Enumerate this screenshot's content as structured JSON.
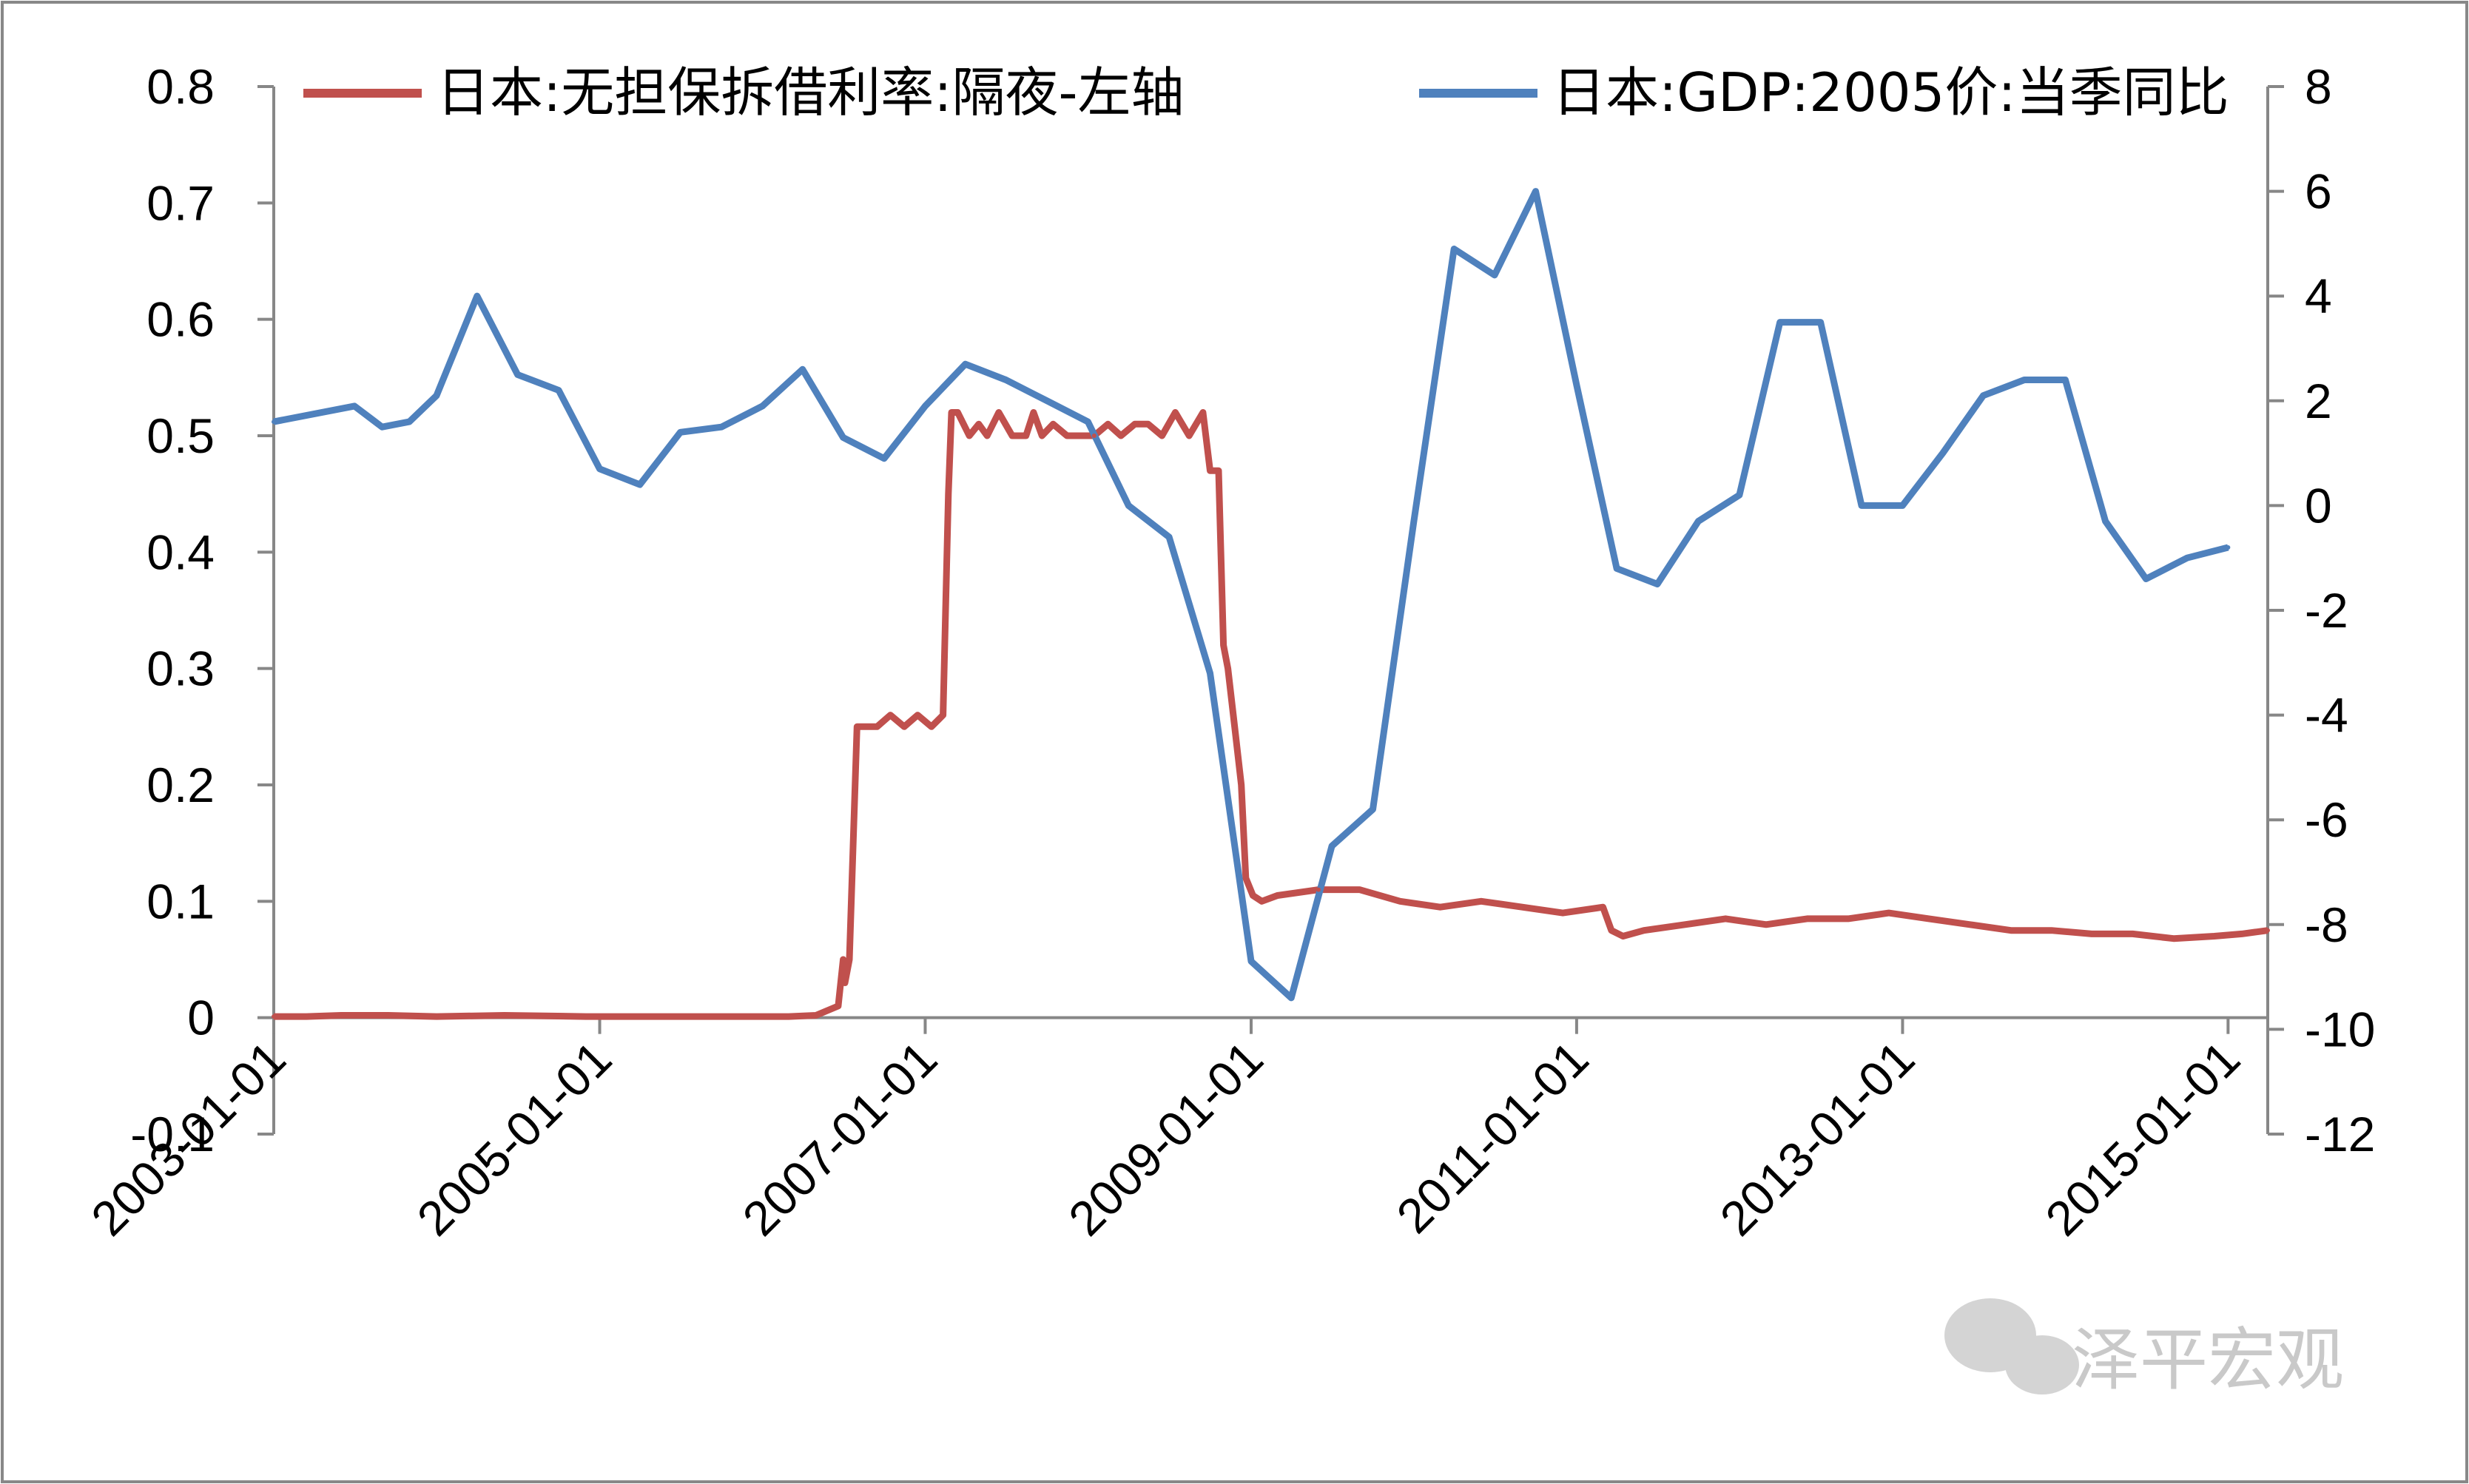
{
  "chart_data": {
    "type": "line",
    "title": "",
    "watermark": "泽平宏观",
    "colors": {
      "overnight_rate": "#C0504D",
      "gdp_yoy": "#4F81BD",
      "axis": "#878787",
      "frame": "#888888"
    },
    "x_axis": {
      "type": "date",
      "range": [
        "2003-01-01",
        "2015-03-31"
      ],
      "tick_labels": [
        "2003-01-01",
        "2005-01-01",
        "2007-01-01",
        "2009-01-01",
        "2011-01-01",
        "2013-01-01",
        "2015-01-01"
      ],
      "tick_values": [
        "2003-01-01",
        "2005-01-01",
        "2007-01-01",
        "2009-01-01",
        "2011-01-01",
        "2013-01-01",
        "2015-01-01"
      ]
    },
    "y_axis_left": {
      "ylim": [
        -0.1,
        0.8
      ],
      "tick_labels": [
        "0.8",
        "0.7",
        "0.6",
        "0.5",
        "0.4",
        "0.3",
        "0.2",
        "0.1",
        "0",
        "-0.1"
      ],
      "tick_values": [
        0.8,
        0.7,
        0.6,
        0.5,
        0.4,
        0.3,
        0.2,
        0.1,
        0,
        -0.1
      ]
    },
    "y_axis_right": {
      "ylim": [
        -12,
        8
      ],
      "tick_labels": [
        "8",
        "6",
        "4",
        "2",
        "0",
        "-2",
        "-4",
        "-6",
        "-8",
        "-10",
        "-12"
      ],
      "tick_values": [
        8,
        6,
        4,
        2,
        0,
        -2,
        -4,
        -6,
        -8,
        -10,
        -12
      ]
    },
    "legend": {
      "placement": "top",
      "items": [
        {
          "name": "日本:无担保拆借利率:隔夜-左轴",
          "axis": "left"
        },
        {
          "name": "日本:GDP:2005价:当季同比",
          "axis": "right"
        }
      ]
    },
    "series": [
      {
        "name": "日本:无担保拆借利率:隔夜-左轴",
        "axis": "left",
        "x": [
          "2003-01-01",
          "2003-03-15",
          "2003-06-01",
          "2003-09-15",
          "2004-01-01",
          "2004-06-01",
          "2004-12-01",
          "2005-06-01",
          "2005-12-01",
          "2006-03-01",
          "2006-05-01",
          "2006-06-20",
          "2006-07-01",
          "2006-07-05",
          "2006-07-15",
          "2006-08-01",
          "2006-09-15",
          "2006-10-15",
          "2006-11-15",
          "2006-12-15",
          "2007-01-15",
          "2007-02-10",
          "2007-02-22",
          "2007-03-01",
          "2007-03-15",
          "2007-04-10",
          "2007-05-01",
          "2007-05-20",
          "2007-06-15",
          "2007-07-15",
          "2007-08-15",
          "2007-09-01",
          "2007-09-20",
          "2007-10-15",
          "2007-11-15",
          "2007-12-15",
          "2008-01-15",
          "2008-02-15",
          "2008-03-15",
          "2008-04-15",
          "2008-05-15",
          "2008-06-15",
          "2008-07-15",
          "2008-08-15",
          "2008-09-15",
          "2008-10-01",
          "2008-10-20",
          "2008-10-31",
          "2008-11-10",
          "2008-11-25",
          "2008-12-10",
          "2008-12-20",
          "2009-01-05",
          "2009-01-25",
          "2009-03-01",
          "2009-06-01",
          "2009-09-01",
          "2009-12-01",
          "2010-03-01",
          "2010-06-01",
          "2010-09-01",
          "2010-12-01",
          "2011-03-01",
          "2011-03-20",
          "2011-04-15",
          "2011-06-01",
          "2011-09-01",
          "2011-12-01",
          "2012-03-01",
          "2012-06-01",
          "2012-09-01",
          "2012-12-01",
          "2013-03-01",
          "2013-06-01",
          "2013-09-01",
          "2013-12-01",
          "2014-03-01",
          "2014-06-01",
          "2014-09-01",
          "2014-12-01",
          "2015-02-01",
          "2015-03-31"
        ],
        "values": [
          0.001,
          0.001,
          0.002,
          0.002,
          0.001,
          0.002,
          0.001,
          0.001,
          0.001,
          0.001,
          0.002,
          0.01,
          0.05,
          0.03,
          0.05,
          0.25,
          0.25,
          0.26,
          0.25,
          0.26,
          0.25,
          0.26,
          0.45,
          0.52,
          0.52,
          0.5,
          0.51,
          0.5,
          0.52,
          0.5,
          0.5,
          0.52,
          0.5,
          0.51,
          0.5,
          0.5,
          0.5,
          0.51,
          0.5,
          0.51,
          0.51,
          0.5,
          0.52,
          0.5,
          0.52,
          0.47,
          0.47,
          0.32,
          0.3,
          0.25,
          0.2,
          0.12,
          0.105,
          0.1,
          0.105,
          0.11,
          0.11,
          0.1,
          0.095,
          0.1,
          0.095,
          0.09,
          0.095,
          0.075,
          0.07,
          0.075,
          0.08,
          0.085,
          0.08,
          0.085,
          0.085,
          0.09,
          0.085,
          0.08,
          0.075,
          0.075,
          0.072,
          0.072,
          0.068,
          0.07,
          0.072,
          0.075
        ]
      },
      {
        "name": "日本:GDP:2005价:当季同比",
        "axis": "right",
        "x": [
          "2003-01-01",
          "2003-07-01",
          "2003-09-01",
          "2003-11-01",
          "2004-01-01",
          "2004-04-01",
          "2004-07-01",
          "2004-10-01",
          "2005-01-01",
          "2005-04-01",
          "2005-07-01",
          "2005-10-01",
          "2006-01-01",
          "2006-04-01",
          "2006-07-01",
          "2006-10-01",
          "2007-01-01",
          "2007-04-01",
          "2007-07-01",
          "2007-10-01",
          "2008-01-01",
          "2008-04-01",
          "2008-07-01",
          "2008-10-01",
          "2009-01-01",
          "2009-04-01",
          "2009-07-01",
          "2009-10-01",
          "2010-01-01",
          "2010-04-01",
          "2010-07-01",
          "2010-10-01",
          "2011-01-01",
          "2011-04-01",
          "2011-07-01",
          "2011-10-01",
          "2012-01-01",
          "2012-04-01",
          "2012-07-01",
          "2012-10-01",
          "2013-01-01",
          "2013-04-01",
          "2013-07-01",
          "2013-10-01",
          "2014-01-01",
          "2014-04-01",
          "2014-07-01",
          "2014-10-01",
          "2015-01-01"
        ],
        "values": [
          1.6,
          1.9,
          1.5,
          1.6,
          2.1,
          4.0,
          2.5,
          2.2,
          0.7,
          0.4,
          1.4,
          1.5,
          1.9,
          2.6,
          1.3,
          0.9,
          1.9,
          2.7,
          2.4,
          2.0,
          1.6,
          0.0,
          -0.6,
          -3.2,
          -8.7,
          -9.4,
          -6.5,
          -5.8,
          -0.3,
          4.9,
          4.4,
          6.0,
          2.3,
          -1.2,
          -1.5,
          -0.3,
          0.2,
          3.5,
          3.5,
          0.0,
          0.0,
          1.0,
          2.1,
          2.4,
          2.4,
          -0.3,
          -1.4,
          -1.0,
          -0.8
        ]
      }
    ]
  }
}
